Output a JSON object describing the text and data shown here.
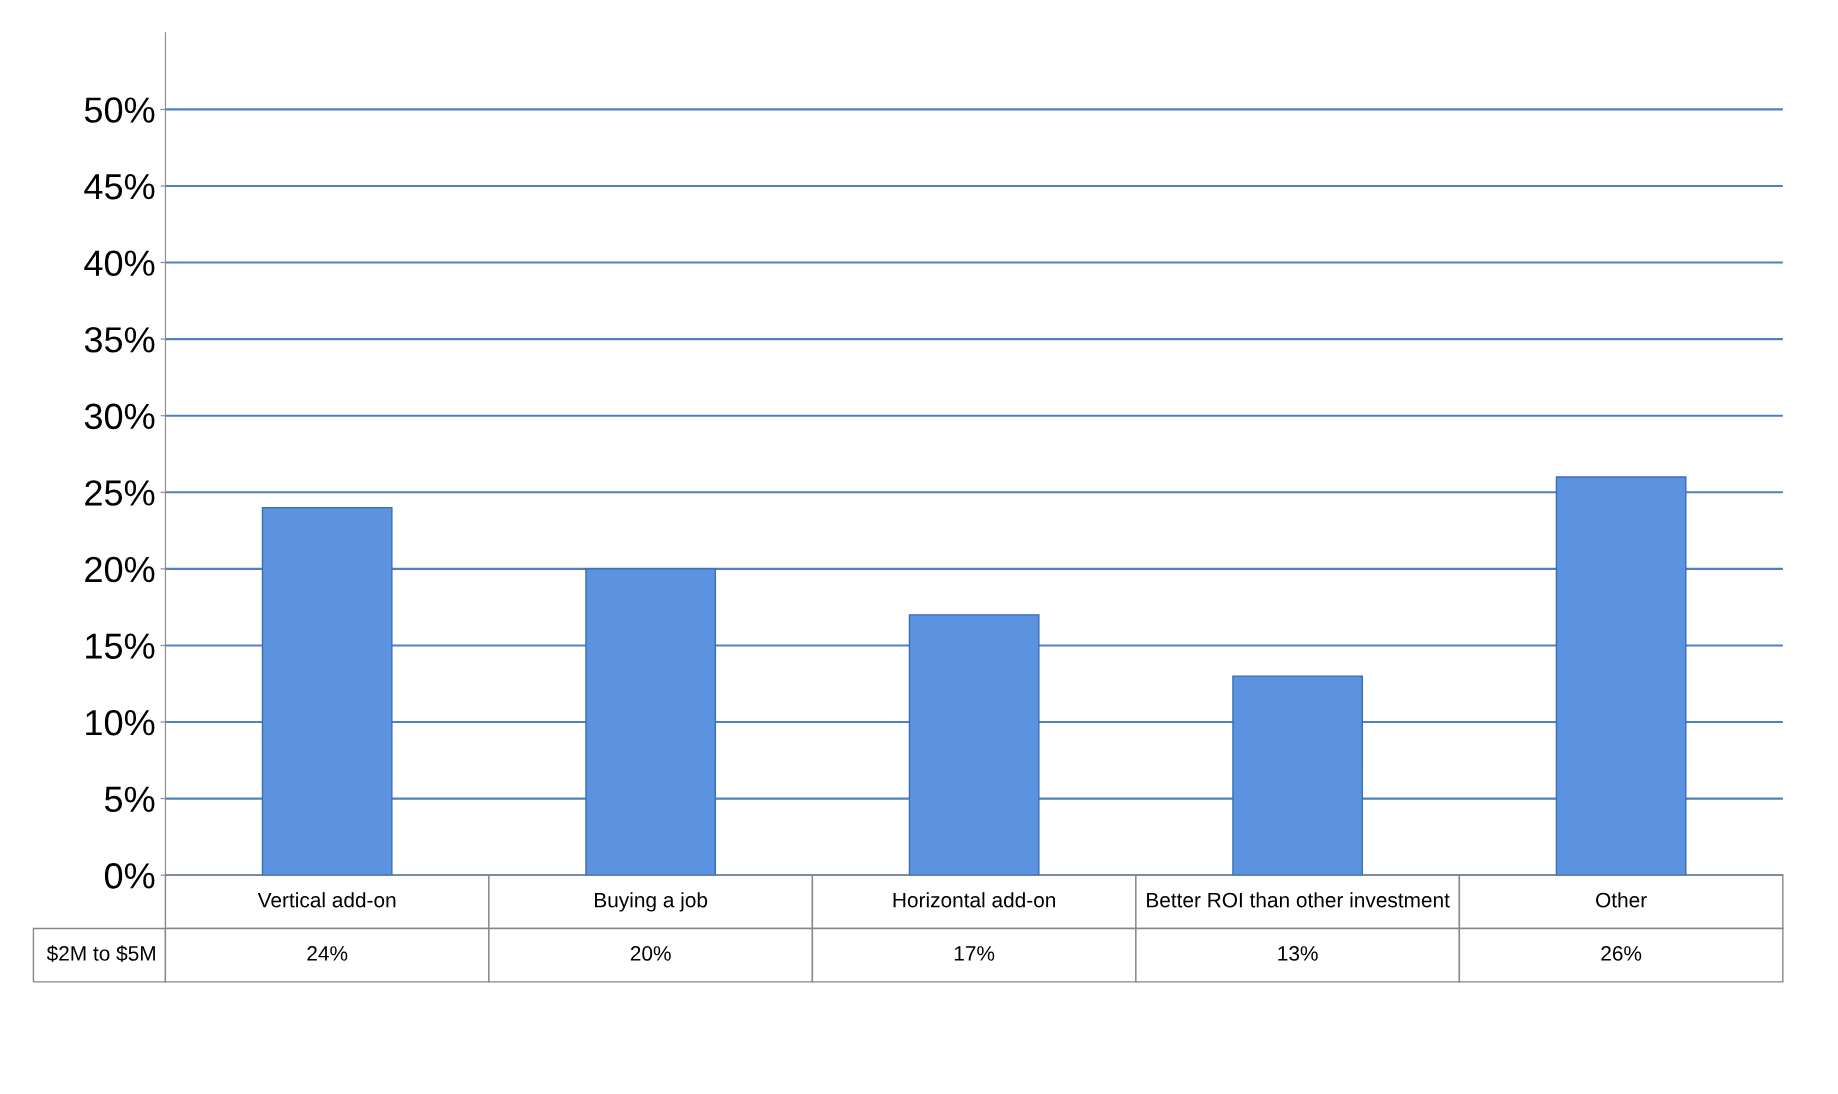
{
  "chart_data": {
    "type": "bar",
    "categories": [
      "Vertical add-on",
      "Buying a job",
      "Horizontal add-on",
      "Better ROI than other investment",
      "Other"
    ],
    "series": [
      {
        "name": "$2M to $5M",
        "color": "#5b93e0",
        "values": [
          24,
          20,
          17,
          13,
          26
        ],
        "value_labels": [
          "24%",
          "20%",
          "17%",
          "13%",
          "26%"
        ]
      }
    ],
    "ylim": [
      0,
      55
    ],
    "yticks": [
      {
        "value": 0,
        "label": "0%"
      },
      {
        "value": 5,
        "label": "5%"
      },
      {
        "value": 10,
        "label": "10%"
      },
      {
        "value": 15,
        "label": "15%"
      },
      {
        "value": 20,
        "label": "20%"
      },
      {
        "value": 25,
        "label": "25%"
      },
      {
        "value": 30,
        "label": "30%"
      },
      {
        "value": 35,
        "label": "35%"
      },
      {
        "value": 40,
        "label": "40%"
      },
      {
        "value": 45,
        "label": "45%"
      },
      {
        "value": 50,
        "label": "50%"
      }
    ],
    "grid": "y",
    "legend": false
  }
}
